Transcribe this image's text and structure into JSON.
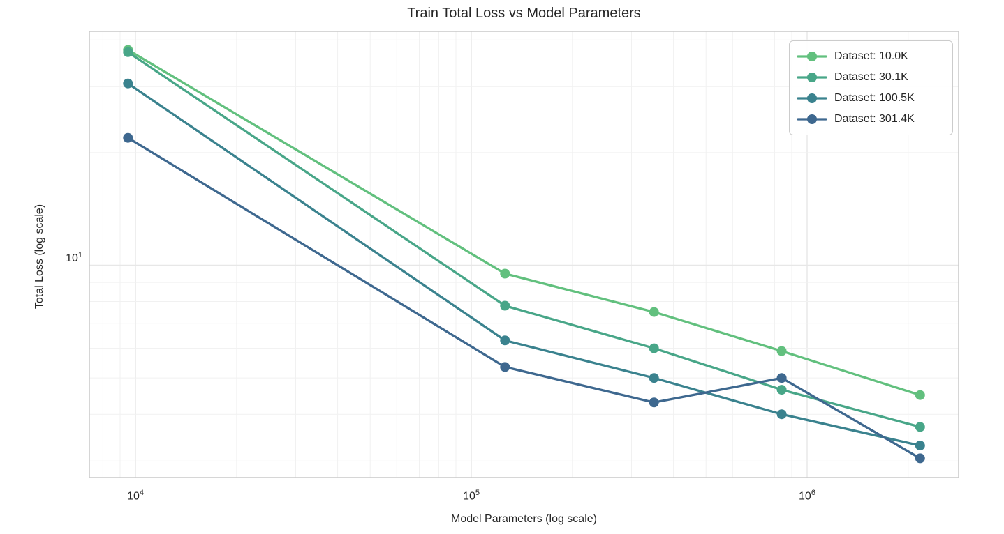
{
  "chart_data": {
    "type": "line",
    "title": "Train Total Loss vs Model Parameters",
    "xlabel": "Model Parameters (log scale)",
    "ylabel": "Total Loss (log scale)",
    "x_scale": "log",
    "y_scale": "log",
    "grid": true,
    "legend_position": "upper right",
    "x_range": [
      7290,
      2826000
    ],
    "y_range": [
      2.71,
      42.15
    ],
    "x_ticks": [
      {
        "text": "10^4",
        "value": 10000
      },
      {
        "text": "10^5",
        "value": 100000
      },
      {
        "text": "10^6",
        "value": 1000000
      }
    ],
    "y_ticks": [
      {
        "text": "10^1",
        "value": 10
      }
    ],
    "x": [
      9500,
      126000,
      350000,
      840000,
      2170000
    ],
    "series": [
      {
        "name": "Dataset: 10.0K",
        "color": "#62c07e",
        "values": [
          37.6,
          9.5,
          7.5,
          5.9,
          4.5
        ]
      },
      {
        "name": "Dataset: 30.1K",
        "color": "#48a688",
        "values": [
          37.1,
          7.8,
          6.0,
          4.65,
          3.7
        ]
      },
      {
        "name": "Dataset: 100.5K",
        "color": "#3a828e",
        "values": [
          30.6,
          6.3,
          5.0,
          4.0,
          3.3
        ]
      },
      {
        "name": "Dataset: 301.4K",
        "color": "#3e688f",
        "values": [
          21.9,
          5.35,
          4.3,
          5.0,
          3.05
        ]
      }
    ],
    "style": {
      "grid_major_color": "#e7e7e7",
      "grid_minor_color": "#f1f1f1",
      "frame_color": "#cccccc",
      "background": "#ffffff",
      "text_color": "#262626"
    }
  }
}
